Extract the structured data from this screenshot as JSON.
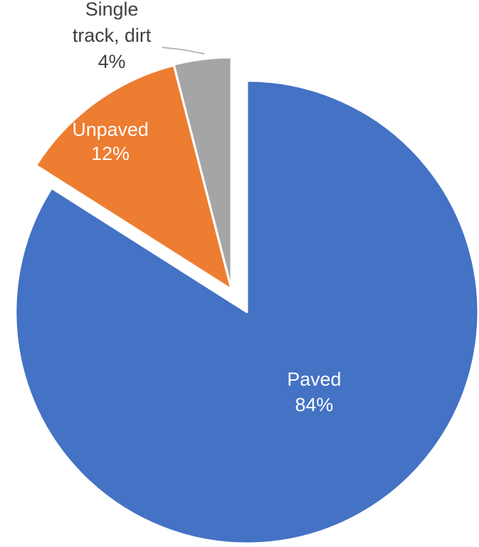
{
  "chart_data": {
    "type": "pie",
    "title": "",
    "slices": [
      {
        "name": "Paved",
        "value": 84,
        "value_label": "84%",
        "color": "#4472C4",
        "label_color": "#FFFFFF",
        "exploded": false
      },
      {
        "name": "Unpaved",
        "value": 12,
        "value_label": "12%",
        "color": "#ED7D31",
        "label_color": "#FFFFFF",
        "exploded": true
      },
      {
        "name": "Single track, dirt",
        "value": 4,
        "value_label": "4%",
        "color": "#A5A5A5",
        "label_color": "#404040",
        "exploded": true
      }
    ],
    "legend": "none",
    "start_angle": "12 o'clock, clockwise"
  }
}
